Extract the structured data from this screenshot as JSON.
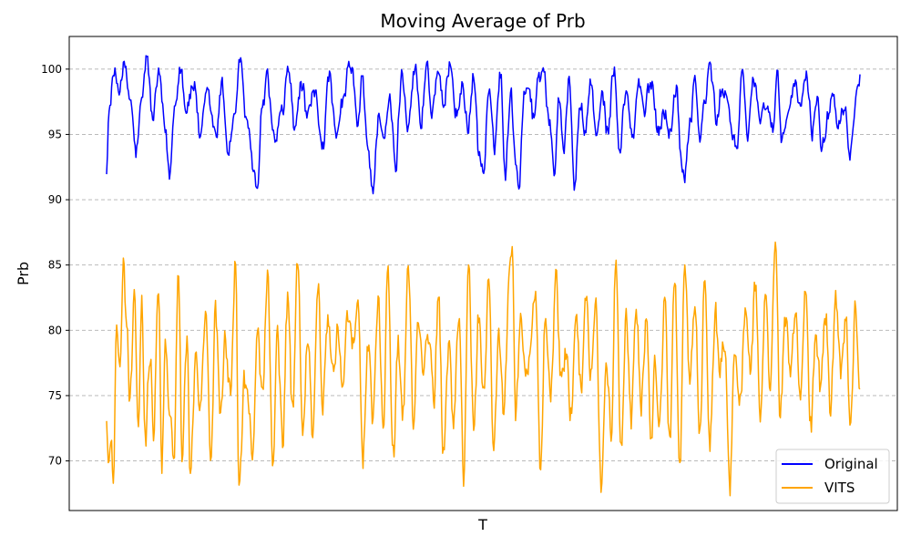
{
  "chart_data": {
    "type": "line",
    "title": "Moving Average of Prb",
    "xlabel": "T",
    "ylabel": "Prb",
    "ylim": [
      66.2,
      102.5
    ],
    "yticks": [
      70,
      75,
      80,
      85,
      90,
      95,
      100
    ],
    "grid": "horizontal dashed",
    "legend_position": "bottom-right",
    "n_points": 900,
    "series": [
      {
        "name": "Original",
        "color": "#0000ff",
        "keypoints": [
          [
            0,
            92.8
          ],
          [
            3,
            96.8
          ],
          [
            8,
            99.3
          ],
          [
            15,
            98.6
          ],
          [
            20,
            100.2
          ],
          [
            28,
            97.5
          ],
          [
            35,
            93.5
          ],
          [
            42,
            97.0
          ],
          [
            48,
            100.9
          ],
          [
            55,
            96.0
          ],
          [
            62,
            99.6
          ],
          [
            70,
            95.2
          ],
          [
            75,
            91.9
          ],
          [
            82,
            98.0
          ],
          [
            88,
            100.8
          ],
          [
            95,
            97.5
          ],
          [
            105,
            98.8
          ],
          [
            112,
            94.2
          ],
          [
            120,
            98.2
          ],
          [
            130,
            95.3
          ],
          [
            138,
            98.9
          ],
          [
            145,
            94.0
          ],
          [
            152,
            96.4
          ],
          [
            160,
            100.6
          ],
          [
            168,
            95.0
          ],
          [
            175,
            92.3
          ],
          [
            180,
            90.8
          ],
          [
            186,
            97.5
          ],
          [
            192,
            99.4
          ],
          [
            200,
            94.7
          ],
          [
            210,
            96.8
          ],
          [
            217,
            100.4
          ],
          [
            225,
            95.0
          ],
          [
            232,
            99.0
          ],
          [
            240,
            96.3
          ],
          [
            248,
            98.5
          ],
          [
            258,
            94.3
          ],
          [
            266,
            99.2
          ],
          [
            274,
            93.9
          ],
          [
            282,
            97.5
          ],
          [
            292,
            100.2
          ],
          [
            300,
            95.5
          ],
          [
            305,
            99.1
          ],
          [
            312,
            93.4
          ],
          [
            318,
            91.0
          ],
          [
            325,
            96.6
          ],
          [
            332,
            94.8
          ],
          [
            338,
            97.2
          ],
          [
            345,
            92.3
          ],
          [
            352,
            99.4
          ],
          [
            360,
            96.0
          ],
          [
            368,
            100.4
          ],
          [
            375,
            95.7
          ],
          [
            382,
            100.6
          ],
          [
            388,
            96.5
          ],
          [
            395,
            99.4
          ],
          [
            402,
            96.2
          ],
          [
            410,
            100.5
          ],
          [
            418,
            97.0
          ],
          [
            425,
            98.7
          ],
          [
            432,
            96.0
          ],
          [
            438,
            99.0
          ],
          [
            445,
            93.0
          ],
          [
            450,
            92.1
          ],
          [
            456,
            98.5
          ],
          [
            462,
            94.0
          ],
          [
            470,
            99.7
          ],
          [
            476,
            92.3
          ],
          [
            482,
            98.8
          ],
          [
            488,
            93.6
          ],
          [
            492,
            91.5
          ],
          [
            498,
            98.2
          ],
          [
            504,
            99.0
          ],
          [
            510,
            96.5
          ],
          [
            516,
            99.8
          ],
          [
            522,
            100.3
          ],
          [
            528,
            96.0
          ],
          [
            534,
            92.3
          ],
          [
            540,
            98.2
          ],
          [
            546,
            94.8
          ],
          [
            552,
            99.7
          ],
          [
            558,
            91.3
          ],
          [
            565,
            97.3
          ],
          [
            572,
            95.3
          ],
          [
            578,
            99.2
          ],
          [
            585,
            94.5
          ],
          [
            592,
            97.8
          ],
          [
            598,
            95.0
          ],
          [
            605,
            99.9
          ],
          [
            612,
            94.2
          ],
          [
            620,
            98.1
          ],
          [
            628,
            95.0
          ],
          [
            635,
            98.8
          ],
          [
            642,
            96.7
          ],
          [
            650,
            99.1
          ],
          [
            658,
            95.5
          ],
          [
            665,
            97.3
          ],
          [
            672,
            95.5
          ],
          [
            680,
            98.6
          ],
          [
            686,
            92.6
          ],
          [
            690,
            92.0
          ],
          [
            696,
            96.2
          ],
          [
            702,
            98.8
          ],
          [
            708,
            94.6
          ],
          [
            714,
            97.4
          ],
          [
            720,
            100.2
          ],
          [
            728,
            95.9
          ],
          [
            735,
            98.6
          ],
          [
            742,
            97.5
          ],
          [
            748,
            94.2
          ],
          [
            752,
            93.4
          ],
          [
            758,
            99.0
          ],
          [
            765,
            95.7
          ],
          [
            772,
            99.0
          ],
          [
            780,
            96.5
          ],
          [
            788,
            97.6
          ],
          [
            795,
            95.4
          ],
          [
            800,
            99.3
          ],
          [
            806,
            93.4
          ],
          [
            810,
            95.2
          ],
          [
            815,
            97.6
          ],
          [
            822,
            98.5
          ],
          [
            828,
            97.2
          ],
          [
            835,
            99.1
          ],
          [
            842,
            95.5
          ],
          [
            848,
            97.8
          ],
          [
            854,
            94.2
          ],
          [
            858,
            95.6
          ],
          [
            866,
            98.4
          ],
          [
            872,
            96.2
          ],
          [
            880,
            97.8
          ],
          [
            888,
            93.8
          ],
          [
            893,
            97.2
          ],
          [
            897,
            99.3
          ],
          [
            899,
            99.6
          ]
        ]
      },
      {
        "name": "VITS",
        "color": "#ffa500",
        "keypoints": [
          [
            0,
            73.2
          ],
          [
            2,
            69.0
          ],
          [
            5,
            72.0
          ],
          [
            8,
            68.8
          ],
          [
            12,
            80.8
          ],
          [
            16,
            76.9
          ],
          [
            20,
            84.6
          ],
          [
            24,
            80.3
          ],
          [
            28,
            74.0
          ],
          [
            33,
            82.0
          ],
          [
            38,
            72.9
          ],
          [
            42,
            81.3
          ],
          [
            46,
            70.9
          ],
          [
            52,
            79.0
          ],
          [
            56,
            73.2
          ],
          [
            62,
            83.2
          ],
          [
            66,
            68.9
          ],
          [
            70,
            79.5
          ],
          [
            75,
            75.0
          ],
          [
            80,
            70.0
          ],
          [
            86,
            85.9
          ],
          [
            90,
            72.0
          ],
          [
            96,
            80.8
          ],
          [
            100,
            69.0
          ],
          [
            106,
            78.1
          ],
          [
            112,
            74.5
          ],
          [
            118,
            82.5
          ],
          [
            124,
            70.8
          ],
          [
            130,
            81.5
          ],
          [
            136,
            73.0
          ],
          [
            142,
            79.0
          ],
          [
            148,
            75.0
          ],
          [
            154,
            85.5
          ],
          [
            158,
            67.8
          ],
          [
            164,
            76.5
          ],
          [
            170,
            74.0
          ],
          [
            174,
            68.9
          ],
          [
            180,
            80.1
          ],
          [
            186,
            74.6
          ],
          [
            192,
            83.7
          ],
          [
            198,
            70.2
          ],
          [
            204,
            79.4
          ],
          [
            210,
            71.5
          ],
          [
            216,
            82.6
          ],
          [
            222,
            73.0
          ],
          [
            228,
            84.2
          ],
          [
            234,
            72.8
          ],
          [
            240,
            79.5
          ],
          [
            246,
            71.3
          ],
          [
            252,
            83.8
          ],
          [
            258,
            74.5
          ],
          [
            264,
            81.4
          ],
          [
            270,
            76.0
          ],
          [
            276,
            80.8
          ],
          [
            282,
            75.6
          ],
          [
            288,
            80.2
          ],
          [
            294,
            77.7
          ],
          [
            300,
            81.3
          ],
          [
            306,
            70.4
          ],
          [
            312,
            78.6
          ],
          [
            318,
            73.1
          ],
          [
            324,
            82.6
          ],
          [
            330,
            72.1
          ],
          [
            336,
            84.7
          ],
          [
            342,
            70.8
          ],
          [
            348,
            79.0
          ],
          [
            354,
            73.5
          ],
          [
            360,
            84.9
          ],
          [
            366,
            72.2
          ],
          [
            372,
            81.1
          ],
          [
            378,
            75.8
          ],
          [
            384,
            80.3
          ],
          [
            390,
            74.2
          ],
          [
            396,
            82.6
          ],
          [
            402,
            70.7
          ],
          [
            408,
            78.7
          ],
          [
            414,
            72.3
          ],
          [
            420,
            81.0
          ],
          [
            426,
            69.0
          ],
          [
            432,
            85.1
          ],
          [
            438,
            72.5
          ],
          [
            444,
            80.8
          ],
          [
            450,
            74.0
          ],
          [
            456,
            85.3
          ],
          [
            462,
            70.4
          ],
          [
            468,
            80.6
          ],
          [
            474,
            73.0
          ],
          [
            480,
            83.6
          ],
          [
            484,
            86.4
          ],
          [
            488,
            73.2
          ],
          [
            494,
            81.4
          ],
          [
            500,
            76.0
          ],
          [
            506,
            79.1
          ],
          [
            512,
            82.6
          ],
          [
            518,
            70.2
          ],
          [
            524,
            80.9
          ],
          [
            530,
            74.7
          ],
          [
            536,
            84.0
          ],
          [
            542,
            76.5
          ],
          [
            548,
            78.8
          ],
          [
            554,
            74.0
          ],
          [
            560,
            80.5
          ],
          [
            566,
            75.8
          ],
          [
            572,
            83.1
          ],
          [
            578,
            77.0
          ],
          [
            584,
            81.4
          ],
          [
            590,
            68.4
          ],
          [
            596,
            79.2
          ],
          [
            602,
            72.2
          ],
          [
            608,
            84.9
          ],
          [
            614,
            70.9
          ],
          [
            620,
            80.7
          ],
          [
            626,
            72.8
          ],
          [
            632,
            81.3
          ],
          [
            638,
            74.3
          ],
          [
            644,
            80.1
          ],
          [
            650,
            70.5
          ],
          [
            654,
            78.0
          ],
          [
            660,
            73.6
          ],
          [
            666,
            82.2
          ],
          [
            672,
            71.3
          ],
          [
            678,
            84.1
          ],
          [
            684,
            69.6
          ],
          [
            690,
            85.5
          ],
          [
            696,
            75.5
          ],
          [
            702,
            82.5
          ],
          [
            708,
            72.0
          ],
          [
            714,
            83.7
          ],
          [
            720,
            71.5
          ],
          [
            726,
            80.5
          ],
          [
            732,
            76.2
          ],
          [
            738,
            79.5
          ],
          [
            744,
            68.7
          ],
          [
            750,
            78.2
          ],
          [
            756,
            74.5
          ],
          [
            762,
            81.4
          ],
          [
            768,
            77.5
          ],
          [
            774,
            84.1
          ],
          [
            780,
            73.3
          ],
          [
            786,
            82.6
          ],
          [
            792,
            74.4
          ],
          [
            798,
            85.2
          ],
          [
            804,
            73.4
          ],
          [
            810,
            81.0
          ],
          [
            816,
            76.4
          ],
          [
            822,
            80.3
          ],
          [
            828,
            74.3
          ],
          [
            834,
            82.6
          ],
          [
            840,
            72.3
          ],
          [
            846,
            78.8
          ],
          [
            852,
            75.4
          ],
          [
            858,
            80.7
          ],
          [
            864,
            73.8
          ],
          [
            870,
            82.4
          ],
          [
            876,
            76.7
          ],
          [
            882,
            80.4
          ],
          [
            888,
            73.6
          ],
          [
            893,
            81.5
          ],
          [
            897,
            78.3
          ],
          [
            899,
            75.5
          ]
        ]
      }
    ]
  }
}
